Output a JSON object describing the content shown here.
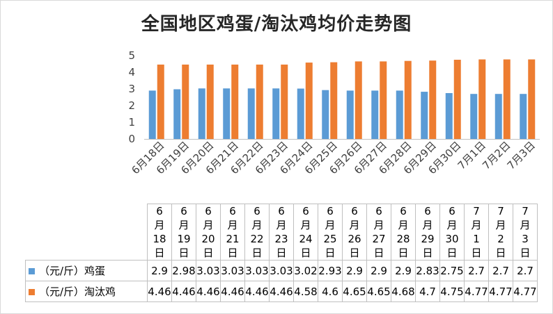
{
  "chart_data": {
    "type": "bar",
    "title": "全国地区鸡蛋/淘汰鸡均价走势图",
    "categories": [
      "6月18日",
      "6月19日",
      "6月20日",
      "6月21日",
      "6月22日",
      "6月23日",
      "6月24日",
      "6月25日",
      "6月26日",
      "6月27日",
      "6月28日",
      "6月29日",
      "6月30日",
      "7月1日",
      "7月2日",
      "7月3日"
    ],
    "series": [
      {
        "name": "（元/斤）鸡蛋",
        "color": "#5b9bd5",
        "values": [
          2.9,
          2.98,
          3.03,
          3.03,
          3.03,
          3.03,
          3.02,
          2.93,
          2.9,
          2.9,
          2.9,
          2.83,
          2.75,
          2.7,
          2.7,
          2.7
        ]
      },
      {
        "name": "（元/斤）淘汰鸡",
        "color": "#ed7d31",
        "values": [
          4.46,
          4.46,
          4.46,
          4.46,
          4.46,
          4.46,
          4.58,
          4.6,
          4.65,
          4.65,
          4.68,
          4.7,
          4.75,
          4.77,
          4.77,
          4.77
        ]
      }
    ],
    "ylim": [
      0,
      5
    ],
    "yticks": [
      "0",
      "1",
      "2",
      "3",
      "4",
      "5"
    ],
    "grid": false,
    "legend": "data table",
    "table_values": [
      [
        "2.9",
        "2.98",
        "3.03",
        "3.03",
        "3.03",
        "3.03",
        "3.02",
        "2.93",
        "2.9",
        "2.9",
        "2.9",
        "2.83",
        "2.75",
        "2.7",
        "2.7",
        "2.7"
      ],
      [
        "4.46",
        "4.46",
        "4.46",
        "4.46",
        "4.46",
        "4.46",
        "4.58",
        "4.6",
        "4.65",
        "4.65",
        "4.68",
        "4.7",
        "4.75",
        "4.77",
        "4.77",
        "4.77"
      ]
    ]
  }
}
